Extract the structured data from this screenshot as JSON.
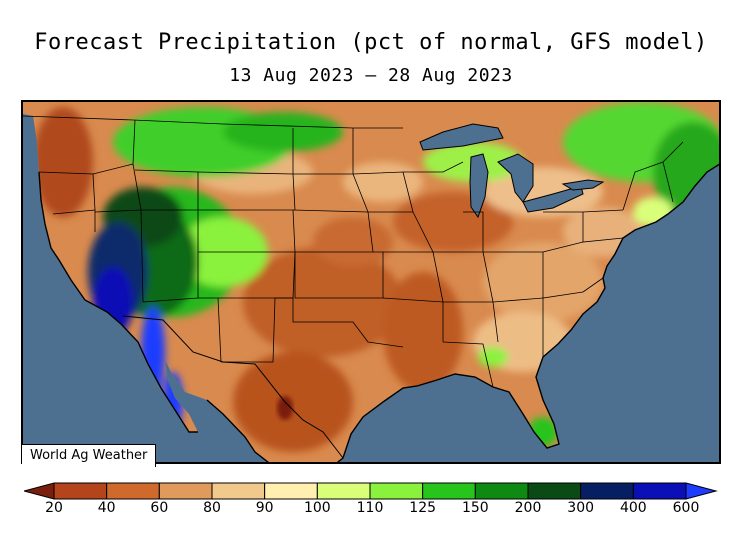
{
  "header": {
    "title": "Forecast Precipitation (pct of normal, GFS model)",
    "date_range": "13 Aug 2023 – 28 Aug 2023"
  },
  "map": {
    "watermark": "World Ag Weather",
    "ocean_color": "#4e7090",
    "land_base_color": "#d98a4e"
  },
  "legend": {
    "bins": [
      {
        "color": "#7a1f0e"
      },
      {
        "color": "#b3441c"
      },
      {
        "color": "#d06a2c"
      },
      {
        "color": "#e09a5c"
      },
      {
        "color": "#f2c98d"
      },
      {
        "color": "#fff0b0"
      },
      {
        "color": "#d9ff7a"
      },
      {
        "color": "#8af23c"
      },
      {
        "color": "#27c41c"
      },
      {
        "color": "#0e8a12"
      },
      {
        "color": "#0a4a14"
      },
      {
        "color": "#061f63"
      },
      {
        "color": "#0a10b5"
      },
      {
        "color": "#1e3cff"
      }
    ],
    "labels": [
      "20",
      "40",
      "60",
      "80",
      "90",
      "100",
      "110",
      "125",
      "150",
      "200",
      "300",
      "400",
      "600"
    ]
  }
}
